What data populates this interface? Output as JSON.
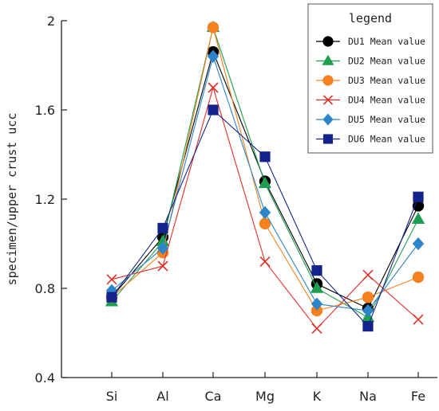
{
  "chart_data": {
    "type": "line",
    "ylabel": "specimen/upper crust ucc",
    "xlabel": "",
    "categories": [
      "Si",
      "Al",
      "Ca",
      "Mg",
      "K",
      "Na",
      "Fe"
    ],
    "ylim": [
      0.4,
      2.0
    ],
    "yticks": [
      "0.4",
      "0.8",
      "1.2",
      "1.6",
      "2"
    ],
    "ytick_values": [
      0.4,
      0.8,
      1.2,
      1.6,
      2.0
    ],
    "grid": false,
    "legend": {
      "title": "legend",
      "placement": "top-right"
    },
    "series": [
      {
        "name": "DU1 Mean value",
        "color": "#000000",
        "marker": "circle",
        "values": [
          0.76,
          1.03,
          1.86,
          1.28,
          0.82,
          0.71,
          1.17
        ]
      },
      {
        "name": "DU2 Mean value",
        "color": "#1e9e50",
        "marker": "triangle",
        "values": [
          0.74,
          1.01,
          1.97,
          1.27,
          0.8,
          0.67,
          1.11
        ]
      },
      {
        "name": "DU3 Mean value",
        "color": "#f5821f",
        "marker": "circle",
        "values": [
          0.76,
          0.96,
          1.97,
          1.09,
          0.7,
          0.76,
          0.85
        ]
      },
      {
        "name": "DU4 Mean value",
        "color": "#e0302a",
        "marker": "x",
        "values": [
          0.84,
          0.9,
          1.7,
          0.92,
          0.62,
          0.86,
          0.66
        ]
      },
      {
        "name": "DU5 Mean value",
        "color": "#2b85c8",
        "marker": "diamond",
        "values": [
          0.79,
          0.98,
          1.84,
          1.14,
          0.73,
          0.7,
          1.0
        ]
      },
      {
        "name": "DU6 Mean value",
        "color": "#14238c",
        "marker": "square",
        "values": [
          0.76,
          1.07,
          1.6,
          1.39,
          0.88,
          0.63,
          1.21
        ]
      }
    ]
  }
}
